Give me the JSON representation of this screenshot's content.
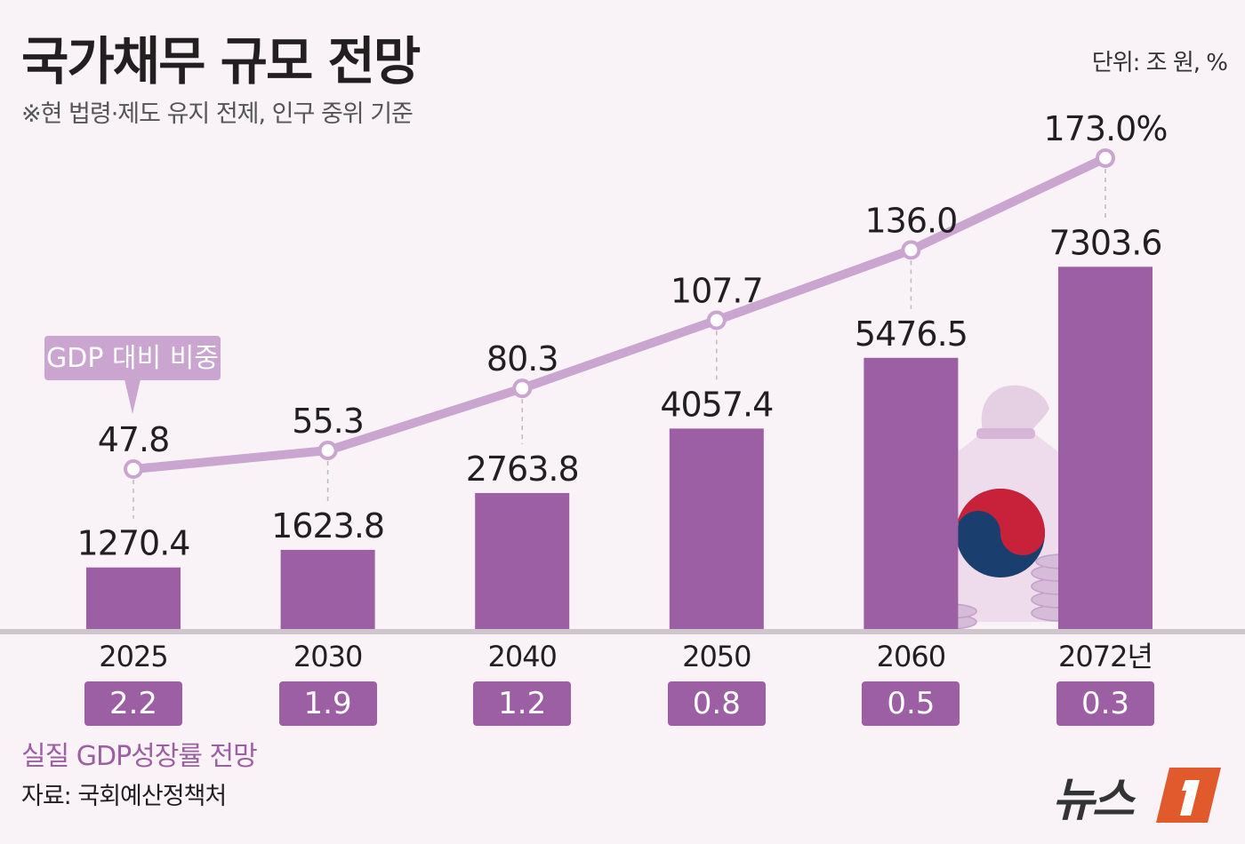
{
  "title": "국가채무 규모 전망",
  "subtitle": "※현 법령·제도 유지 전제, 인구 중위 기준",
  "unit": "단위: 조 원, %",
  "line_callout": "GDP 대비 비중",
  "growth_label": "실질 GDP성장률 전망",
  "source": "자료: 국회예산정책처",
  "logo": "뉴스1",
  "colors": {
    "bar": "#9c5fa3",
    "line": "#c9a5d0",
    "background": "#f9f3f7",
    "logo_accent": "#e05a2c"
  },
  "chart_data": {
    "type": "bar+line",
    "categories": [
      "2025",
      "2030",
      "2040",
      "2050",
      "2060",
      "2072년"
    ],
    "series": [
      {
        "name": "",
        "type": "bar",
        "values": [
          1270.4,
          1623.8,
          2763.8,
          4057.4,
          5476.5,
          7303.6
        ],
        "labels": [
          "1270.4",
          "1623.8",
          "2763.8",
          "4057.4",
          "5476.5",
          "7303.6"
        ]
      },
      {
        "name": "GDP 대비 비중",
        "type": "line",
        "values": [
          47.8,
          55.3,
          80.3,
          107.7,
          136.0,
          173.0
        ],
        "labels": [
          "47.8",
          "55.3",
          "80.3",
          "107.7",
          "136.0",
          "173.0%"
        ]
      },
      {
        "name": "실질 GDP성장률 전망",
        "type": "boxes",
        "values": [
          2.2,
          1.9,
          1.2,
          0.8,
          0.5,
          0.3
        ],
        "labels": [
          "2.2",
          "1.9",
          "1.2",
          "0.8",
          "0.5",
          "0.3"
        ]
      }
    ]
  }
}
